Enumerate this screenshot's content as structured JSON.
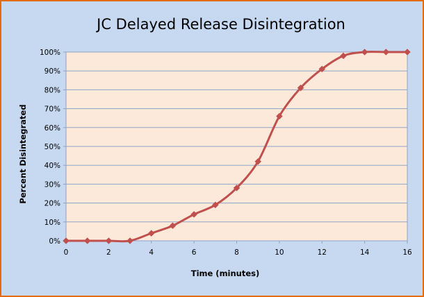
{
  "chart_data": {
    "type": "line",
    "title": "JC Delayed Release Disintegration",
    "xlabel": "Time (minutes)",
    "ylabel": "Percent Disintegrated",
    "xlim": [
      0,
      16
    ],
    "ylim": [
      0,
      1
    ],
    "x_ticks": [
      0,
      2,
      4,
      6,
      8,
      10,
      12,
      14,
      16
    ],
    "x_tick_labels": [
      "0",
      "2",
      "4",
      "6",
      "8",
      "10",
      "12",
      "14",
      "16"
    ],
    "y_ticks": [
      0,
      0.1,
      0.2,
      0.3,
      0.4,
      0.5,
      0.6,
      0.7,
      0.8,
      0.9,
      1.0
    ],
    "y_tick_labels": [
      "0%",
      "10%",
      "20%",
      "30%",
      "40%",
      "50%",
      "60%",
      "70%",
      "80%",
      "90%",
      "100%"
    ],
    "grid": "horizontal",
    "legend": "none",
    "series": [
      {
        "x": [
          0,
          1,
          2,
          3,
          4,
          5,
          6,
          7,
          8,
          9,
          10,
          11,
          12,
          13,
          14,
          15,
          16
        ],
        "y": [
          0,
          0,
          0,
          0,
          0.04,
          0.08,
          0.14,
          0.19,
          0.28,
          0.42,
          0.66,
          0.81,
          0.91,
          0.98,
          1.0,
          1.0,
          1.0
        ],
        "marker": "diamond",
        "color": "#c0504d"
      }
    ],
    "colors": {
      "background": "#c6d9f1",
      "border": "#e46c0a",
      "plot_area": "#fde9d9",
      "gridline": "#8fa3c7",
      "series": "#c0504d"
    }
  }
}
